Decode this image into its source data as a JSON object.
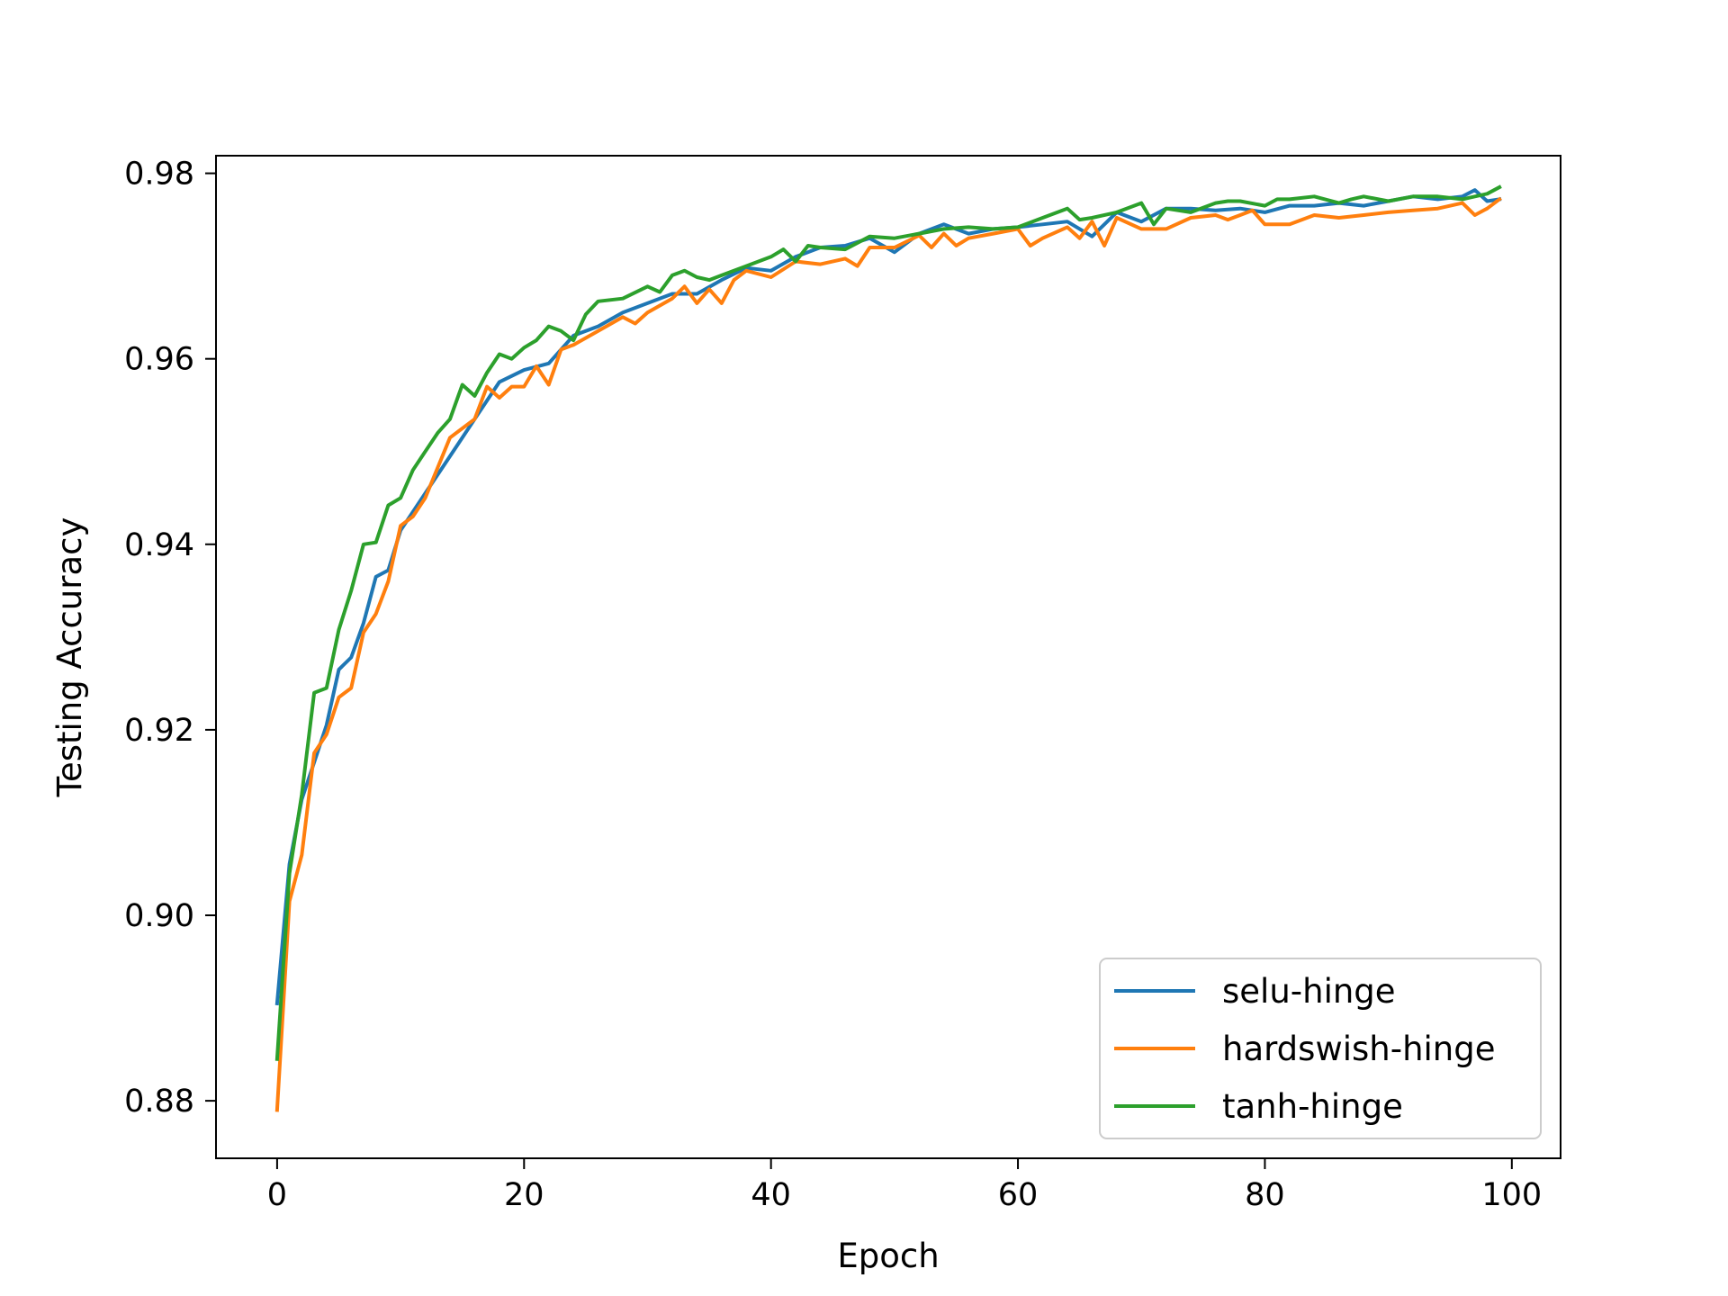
{
  "chart_data": {
    "type": "line",
    "title": "",
    "xlabel": "Epoch",
    "ylabel": "Testing Accuracy",
    "xlim": [
      -4.95,
      103.95
    ],
    "ylim": [
      0.8738,
      0.9819
    ],
    "xticks": [
      0,
      20,
      40,
      60,
      80,
      100
    ],
    "xtick_labels": [
      "0",
      "20",
      "40",
      "60",
      "80",
      "100"
    ],
    "yticks": [
      0.88,
      0.9,
      0.92,
      0.94,
      0.96,
      0.98
    ],
    "ytick_labels": [
      "0.88",
      "0.90",
      "0.92",
      "0.94",
      "0.96",
      "0.98"
    ],
    "grid": false,
    "legend_position": "lower-right",
    "series": [
      {
        "name": "selu-hinge",
        "color": "#1f77b4",
        "x": [
          0,
          1,
          2,
          3,
          4,
          5,
          6,
          7,
          8,
          9,
          10,
          12,
          14,
          16,
          18,
          20,
          22,
          24,
          26,
          28,
          30,
          32,
          34,
          36,
          38,
          40,
          42,
          44,
          46,
          48,
          50,
          52,
          54,
          56,
          58,
          60,
          62,
          64,
          66,
          68,
          70,
          72,
          74,
          76,
          78,
          80,
          82,
          84,
          86,
          88,
          90,
          92,
          94,
          96,
          97,
          98,
          99
        ],
        "y": [
          0.8905,
          0.9055,
          0.9125,
          0.9165,
          0.9205,
          0.9265,
          0.9278,
          0.9315,
          0.9365,
          0.9372,
          0.9415,
          0.9455,
          0.9495,
          0.9535,
          0.9575,
          0.9588,
          0.9595,
          0.9625,
          0.9635,
          0.965,
          0.966,
          0.967,
          0.967,
          0.9685,
          0.9698,
          0.9695,
          0.971,
          0.972,
          0.9722,
          0.973,
          0.9715,
          0.9735,
          0.9745,
          0.9735,
          0.974,
          0.9742,
          0.9745,
          0.9748,
          0.9732,
          0.9758,
          0.9748,
          0.9762,
          0.9762,
          0.976,
          0.9762,
          0.9758,
          0.9765,
          0.9765,
          0.9768,
          0.9765,
          0.977,
          0.9775,
          0.9772,
          0.9775,
          0.9782,
          0.977,
          0.9772
        ]
      },
      {
        "name": "hardswish-hinge",
        "color": "#ff7f0e",
        "x": [
          0,
          1,
          2,
          3,
          4,
          5,
          6,
          7,
          8,
          9,
          10,
          11,
          12,
          14,
          16,
          17,
          18,
          19,
          20,
          21,
          22,
          23,
          24,
          26,
          28,
          29,
          30,
          32,
          33,
          34,
          35,
          36,
          37,
          38,
          40,
          42,
          44,
          46,
          47,
          48,
          50,
          52,
          53,
          54,
          55,
          56,
          58,
          60,
          61,
          62,
          64,
          65,
          66,
          67,
          68,
          70,
          72,
          74,
          76,
          77,
          78,
          79,
          80,
          82,
          84,
          86,
          88,
          90,
          92,
          94,
          96,
          97,
          98,
          99
        ],
        "y": [
          0.879,
          0.9015,
          0.9065,
          0.9175,
          0.9195,
          0.9235,
          0.9245,
          0.9305,
          0.9325,
          0.936,
          0.942,
          0.943,
          0.945,
          0.9515,
          0.9535,
          0.957,
          0.9558,
          0.957,
          0.957,
          0.9592,
          0.9572,
          0.961,
          0.9615,
          0.963,
          0.9645,
          0.9638,
          0.965,
          0.9665,
          0.9678,
          0.966,
          0.9675,
          0.966,
          0.9685,
          0.9695,
          0.9688,
          0.9705,
          0.9702,
          0.9708,
          0.97,
          0.972,
          0.972,
          0.9733,
          0.972,
          0.9735,
          0.9722,
          0.973,
          0.9735,
          0.974,
          0.9722,
          0.973,
          0.9742,
          0.973,
          0.9748,
          0.9722,
          0.9752,
          0.974,
          0.974,
          0.9752,
          0.9755,
          0.975,
          0.9755,
          0.976,
          0.9745,
          0.9745,
          0.9755,
          0.9752,
          0.9755,
          0.9758,
          0.976,
          0.9762,
          0.9768,
          0.9755,
          0.9762,
          0.9772
        ]
      },
      {
        "name": "tanh-hinge",
        "color": "#2ca02c",
        "x": [
          0,
          1,
          2,
          3,
          4,
          5,
          6,
          7,
          8,
          9,
          10,
          11,
          12,
          13,
          14,
          15,
          16,
          17,
          18,
          19,
          20,
          21,
          22,
          23,
          24,
          25,
          26,
          28,
          30,
          31,
          32,
          33,
          34,
          35,
          36,
          38,
          40,
          41,
          42,
          43,
          44,
          46,
          48,
          50,
          52,
          54,
          56,
          58,
          60,
          62,
          64,
          65,
          66,
          68,
          70,
          71,
          72,
          74,
          76,
          77,
          78,
          80,
          81,
          82,
          84,
          86,
          87,
          88,
          90,
          92,
          94,
          96,
          98,
          99
        ],
        "y": [
          0.8845,
          0.9045,
          0.913,
          0.924,
          0.9245,
          0.9308,
          0.935,
          0.94,
          0.9402,
          0.9442,
          0.945,
          0.948,
          0.95,
          0.952,
          0.9535,
          0.9572,
          0.956,
          0.9585,
          0.9605,
          0.96,
          0.9612,
          0.962,
          0.9635,
          0.963,
          0.962,
          0.9648,
          0.9662,
          0.9665,
          0.9678,
          0.9672,
          0.969,
          0.9695,
          0.9688,
          0.9685,
          0.969,
          0.97,
          0.971,
          0.9718,
          0.9705,
          0.9722,
          0.972,
          0.9718,
          0.9732,
          0.973,
          0.9735,
          0.974,
          0.9742,
          0.974,
          0.9742,
          0.9752,
          0.9762,
          0.975,
          0.9752,
          0.9758,
          0.9768,
          0.9745,
          0.9762,
          0.9758,
          0.9768,
          0.977,
          0.977,
          0.9765,
          0.9772,
          0.9772,
          0.9775,
          0.9768,
          0.9772,
          0.9775,
          0.977,
          0.9775,
          0.9775,
          0.9772,
          0.9778,
          0.9785
        ]
      }
    ]
  }
}
